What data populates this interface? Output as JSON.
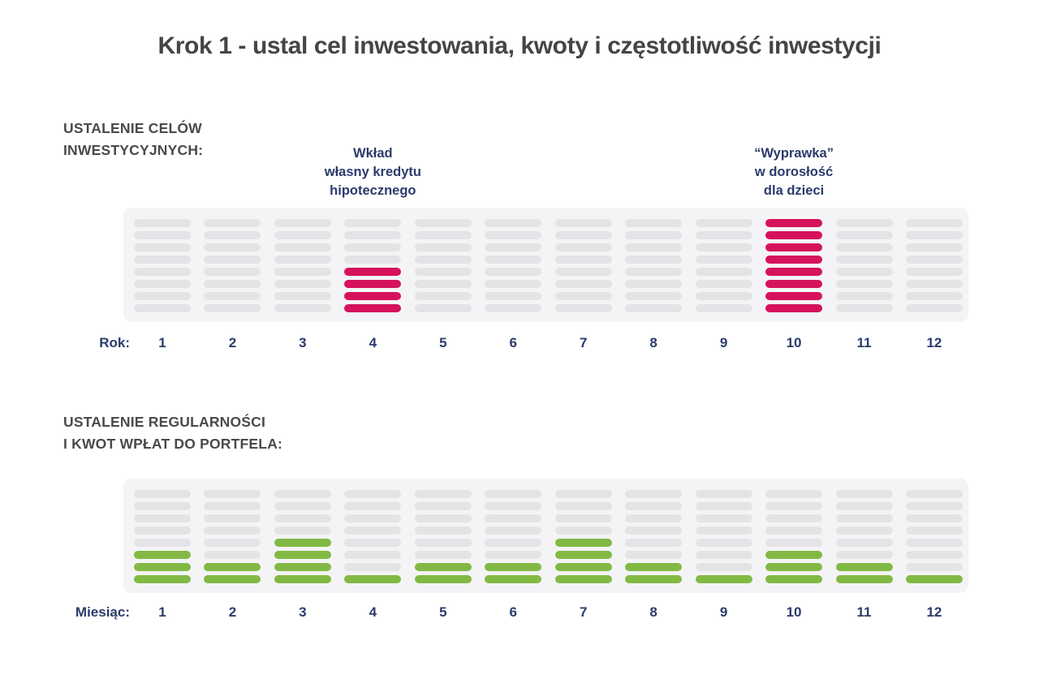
{
  "page": {
    "title": "Krok 1 - ustal cel inwestowania, kwoty i częstotliwość inwestycji"
  },
  "colors": {
    "goal_highlight_red": "#d5125b",
    "deposit_highlight_green": "#82b944",
    "label_navy": "#2b3b6c",
    "heading_gray": "#4a4a4a",
    "panel_background": "#f4f4f6",
    "empty_segment_gray": "#e4e4e7"
  },
  "chart_data": [
    {
      "type": "bar",
      "title": "USTALENIE CELÓW INWESTYCYJNYCH:",
      "section_title_lines": [
        "USTALENIE CELÓW",
        "INWESTYCYJNYCH:"
      ],
      "xlabel": "Rok:",
      "categories": [
        "1",
        "2",
        "3",
        "4",
        "5",
        "6",
        "7",
        "8",
        "9",
        "10",
        "11",
        "12"
      ],
      "values": [
        0,
        0,
        0,
        4,
        0,
        0,
        0,
        0,
        0,
        8,
        0,
        0
      ],
      "max_segments": 8,
      "ylim": [
        0,
        8
      ],
      "highlight_color": "#d5125b",
      "legend_position": "none",
      "grid": false,
      "annotations": [
        {
          "category": "4",
          "name": "annotation-mortgage",
          "lines": [
            "Wkład",
            "własny kredytu",
            "hipotecznego"
          ]
        },
        {
          "category": "10",
          "name": "annotation-children",
          "lines": [
            "“Wyprawka”",
            "w dorosłość",
            "dla dzieci"
          ]
        }
      ]
    },
    {
      "type": "bar",
      "title": "USTALENIE REGULARNOŚCI I KWOT WPŁAT DO PORTFELA:",
      "section_title_lines": [
        "USTALENIE REGULARNOŚCI",
        "I KWOT WPŁAT DO PORTFELA:"
      ],
      "xlabel": "Miesiąc:",
      "categories": [
        "1",
        "2",
        "3",
        "4",
        "5",
        "6",
        "7",
        "8",
        "9",
        "10",
        "11",
        "12"
      ],
      "values": [
        3,
        2,
        4,
        1,
        2,
        2,
        4,
        2,
        1,
        3,
        2,
        1
      ],
      "max_segments": 8,
      "ylim": [
        0,
        8
      ],
      "highlight_color": "#82b944",
      "legend_position": "none",
      "grid": false,
      "annotations": []
    }
  ]
}
